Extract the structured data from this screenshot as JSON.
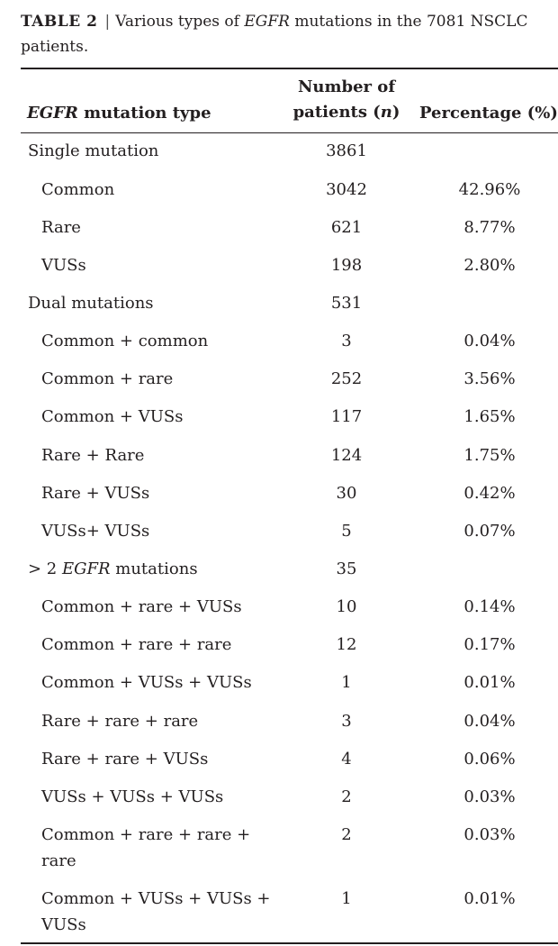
{
  "caption": {
    "label": "TABLE 2",
    "separator": "|",
    "text_before": "Various types of ",
    "text_italic": "EGFR",
    "text_after": " mutations in the 7081 NSCLC patients."
  },
  "table": {
    "headers": {
      "type_italic": "EGFR",
      "type_rest": " mutation type",
      "number_line1": "Number of",
      "number_line2_pre": "patients (",
      "number_line2_italic": "n",
      "number_line2_post": ")",
      "percentage": "Percentage (%)"
    },
    "rows": [
      {
        "type": "Single mutation",
        "n": "3861",
        "pct": ""
      },
      {
        "type": "Common",
        "n": "3042",
        "pct": "42.96%"
      },
      {
        "type": "Rare",
        "n": "621",
        "pct": "8.77%"
      },
      {
        "type": "VUSs",
        "n": "198",
        "pct": "2.80%"
      },
      {
        "type": "Dual mutations",
        "n": "531",
        "pct": ""
      },
      {
        "type": "Common + common",
        "n": "3",
        "pct": "0.04%"
      },
      {
        "type": "Common + rare",
        "n": "252",
        "pct": "3.56%"
      },
      {
        "type": "Common + VUSs",
        "n": "117",
        "pct": "1.65%"
      },
      {
        "type": "Rare + Rare",
        "n": "124",
        "pct": "1.75%"
      },
      {
        "type": "Rare + VUSs",
        "n": "30",
        "pct": "0.42%"
      },
      {
        "type": "VUSs+ VUSs",
        "n": "5",
        "pct": "0.07%"
      },
      {
        "type_pre": "> 2 ",
        "type_italic": "EGFR",
        "type_post": " mutations",
        "n": "35",
        "pct": ""
      },
      {
        "type": "Common + rare + VUSs",
        "n": "10",
        "pct": "0.14%"
      },
      {
        "type": "Common + rare + rare",
        "n": "12",
        "pct": "0.17%"
      },
      {
        "type": "Common + VUSs + VUSs",
        "n": "1",
        "pct": "0.01%"
      },
      {
        "type": "Rare + rare + rare",
        "n": "3",
        "pct": "0.04%"
      },
      {
        "type": "Rare + rare + VUSs",
        "n": "4",
        "pct": "0.06%"
      },
      {
        "type": "VUSs + VUSs + VUSs",
        "n": "2",
        "pct": "0.03%"
      },
      {
        "type_line1": "Common + rare + rare +",
        "type_line2": "rare",
        "n": "2",
        "pct": "0.03%"
      },
      {
        "type_line1": "Common + VUSs + VUSs +",
        "type_line2": "VUSs",
        "n": "1",
        "pct": "0.01%"
      }
    ]
  }
}
